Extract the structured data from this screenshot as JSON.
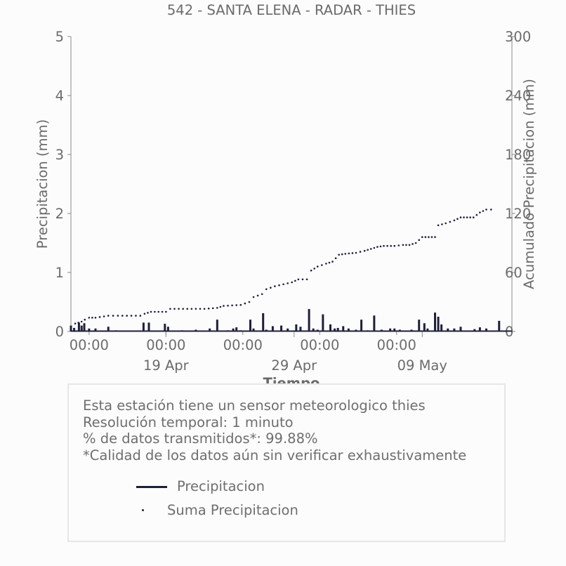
{
  "chart_data": {
    "type": "bar",
    "title": "542 - SANTA ELENA - RADAR - THIES",
    "xlabel": "Tiempo",
    "ylabel": "Precipitacion (mm)",
    "y2label": "Acumulado Precipitacion (mm)",
    "ylim": [
      0,
      5
    ],
    "y2lim": [
      0,
      300
    ],
    "yticks": [
      "0",
      "1",
      "2",
      "3",
      "4",
      "5"
    ],
    "y2ticks": [
      "0",
      "60",
      "120",
      "180",
      "240",
      "300"
    ],
    "xlim_days": [
      "2024-04-11T14:00",
      "2024-05-12T18:00"
    ],
    "xtick_hours": [
      {
        "date": "2024-04-13T00:00",
        "label": "00:00"
      },
      {
        "date": "2024-04-19T00:00",
        "label": "00:00"
      },
      {
        "date": "2024-04-25T00:00",
        "label": "00:00"
      },
      {
        "date": "2024-05-01T00:00",
        "label": "00:00"
      },
      {
        "date": "2024-05-07T00:00",
        "label": "00:00"
      }
    ],
    "xtick_dates": [
      {
        "date": "2024-04-19T00:00",
        "label": "19 Apr"
      },
      {
        "date": "2024-04-29T00:00",
        "label": "29 Apr"
      },
      {
        "date": "2024-05-09T00:00",
        "label": "09 May"
      }
    ],
    "series": [
      {
        "name": "Precipitacion",
        "color": "#1e1f3b",
        "style": "bars",
        "points": [
          [
            "2024-04-11T14:00",
            0.1
          ],
          [
            "2024-04-11T20:00",
            0.06
          ],
          [
            "2024-04-12T05:00",
            0.15
          ],
          [
            "2024-04-12T10:00",
            0.1
          ],
          [
            "2024-04-12T15:00",
            0.14
          ],
          [
            "2024-04-13T00:00",
            0.05
          ],
          [
            "2024-04-13T12:00",
            0.05
          ],
          [
            "2024-04-14T12:00",
            0.08
          ],
          [
            "2024-04-15T02:00",
            0.02
          ],
          [
            "2024-04-17T06:00",
            0.15
          ],
          [
            "2024-04-17T16:00",
            0.15
          ],
          [
            "2024-04-18T22:00",
            0.13
          ],
          [
            "2024-04-19T04:00",
            0.08
          ],
          [
            "2024-04-20T06:00",
            0.02
          ],
          [
            "2024-04-21T08:00",
            0.03
          ],
          [
            "2024-04-22T10:00",
            0.05
          ],
          [
            "2024-04-23T00:00",
            0.2
          ],
          [
            "2024-04-23T20:00",
            0.02
          ],
          [
            "2024-04-24T06:00",
            0.05
          ],
          [
            "2024-04-24T12:00",
            0.07
          ],
          [
            "2024-04-24T20:00",
            0.02
          ],
          [
            "2024-04-25T14:00",
            0.2
          ],
          [
            "2024-04-25T20:00",
            0.05
          ],
          [
            "2024-04-26T14:00",
            0.31
          ],
          [
            "2024-04-26T20:00",
            0.03
          ],
          [
            "2024-04-27T08:00",
            0.09
          ],
          [
            "2024-04-28T00:00",
            0.1
          ],
          [
            "2024-04-28T12:00",
            0.05
          ],
          [
            "2024-04-29T04:00",
            0.12
          ],
          [
            "2024-04-29T12:00",
            0.08
          ],
          [
            "2024-04-30T04:00",
            0.38
          ],
          [
            "2024-04-30T12:00",
            0.05
          ],
          [
            "2024-04-30T20:00",
            0.03
          ],
          [
            "2024-05-01T06:00",
            0.29
          ],
          [
            "2024-05-01T20:00",
            0.12
          ],
          [
            "2024-05-02T04:00",
            0.05
          ],
          [
            "2024-05-02T10:00",
            0.06
          ],
          [
            "2024-05-02T20:00",
            0.09
          ],
          [
            "2024-05-03T06:00",
            0.05
          ],
          [
            "2024-05-03T20:00",
            0.03
          ],
          [
            "2024-05-04T06:00",
            0.2
          ],
          [
            "2024-05-04T18:00",
            0.02
          ],
          [
            "2024-05-05T06:00",
            0.27
          ],
          [
            "2024-05-05T20:00",
            0.03
          ],
          [
            "2024-05-06T12:00",
            0.05
          ],
          [
            "2024-05-06T20:00",
            0.05
          ],
          [
            "2024-05-07T06:00",
            0.03
          ],
          [
            "2024-05-08T04:00",
            0.03
          ],
          [
            "2024-05-08T18:00",
            0.2
          ],
          [
            "2024-05-09T04:00",
            0.14
          ],
          [
            "2024-05-09T10:00",
            0.05
          ],
          [
            "2024-05-10T00:00",
            0.32
          ],
          [
            "2024-05-10T06:00",
            0.25
          ],
          [
            "2024-05-10T12:00",
            0.12
          ],
          [
            "2024-05-11T00:00",
            0.05
          ],
          [
            "2024-05-11T12:00",
            0.05
          ],
          [
            "2024-05-12T00:00",
            0.08
          ],
          [
            "2024-05-13T02:00",
            0.04
          ],
          [
            "2024-05-13T12:00",
            0.07
          ],
          [
            "2024-05-14T00:00",
            0.05
          ],
          [
            "2024-05-15T00:00",
            0.18
          ]
        ]
      },
      {
        "name": "Suma Precipitacion",
        "color": "#1e1f3b",
        "style": "dotted",
        "points": [
          [
            "2024-04-11T14:00",
            5
          ],
          [
            "2024-04-11T22:00",
            8
          ],
          [
            "2024-04-12T10:00",
            10
          ],
          [
            "2024-04-12T16:00",
            12
          ],
          [
            "2024-04-13T00:00",
            14
          ],
          [
            "2024-04-13T12:00",
            14
          ],
          [
            "2024-04-14T12:00",
            16
          ],
          [
            "2024-04-15T06:00",
            16
          ],
          [
            "2024-04-17T00:00",
            16
          ],
          [
            "2024-04-17T08:00",
            18
          ],
          [
            "2024-04-17T20:00",
            20
          ],
          [
            "2024-04-19T00:00",
            20
          ],
          [
            "2024-04-19T08:00",
            23
          ],
          [
            "2024-04-20T00:00",
            23
          ],
          [
            "2024-04-22T00:00",
            23
          ],
          [
            "2024-04-23T00:00",
            24
          ],
          [
            "2024-04-23T12:00",
            26
          ],
          [
            "2024-04-24T20:00",
            27
          ],
          [
            "2024-04-25T12:00",
            30
          ],
          [
            "2024-04-25T20:00",
            35
          ],
          [
            "2024-04-26T12:00",
            38
          ],
          [
            "2024-04-26T20:00",
            43
          ],
          [
            "2024-04-27T12:00",
            46
          ],
          [
            "2024-04-28T04:00",
            48
          ],
          [
            "2024-04-28T20:00",
            50
          ],
          [
            "2024-04-29T08:00",
            53
          ],
          [
            "2024-04-30T00:00",
            53
          ],
          [
            "2024-04-30T08:00",
            62
          ],
          [
            "2024-04-30T20:00",
            66
          ],
          [
            "2024-05-01T12:00",
            69
          ],
          [
            "2024-05-02T00:00",
            71
          ],
          [
            "2024-05-02T12:00",
            78
          ],
          [
            "2024-05-03T00:00",
            79
          ],
          [
            "2024-05-03T20:00",
            80
          ],
          [
            "2024-05-04T12:00",
            82
          ],
          [
            "2024-05-05T00:00",
            84
          ],
          [
            "2024-05-05T12:00",
            86
          ],
          [
            "2024-05-06T00:00",
            87
          ],
          [
            "2024-05-06T20:00",
            87
          ],
          [
            "2024-05-07T12:00",
            88
          ],
          [
            "2024-05-08T00:00",
            88
          ],
          [
            "2024-05-08T12:00",
            90
          ],
          [
            "2024-05-09T00:00",
            96
          ],
          [
            "2024-05-09T12:00",
            96
          ],
          [
            "2024-05-10T00:00",
            96
          ],
          [
            "2024-05-10T06:00",
            108
          ],
          [
            "2024-05-10T20:00",
            110
          ],
          [
            "2024-05-11T12:00",
            113
          ],
          [
            "2024-05-12T00:00",
            116
          ],
          [
            "2024-05-12T12:00",
            116
          ],
          [
            "2024-05-13T00:00",
            116
          ],
          [
            "2024-05-13T12:00",
            121
          ],
          [
            "2024-05-14T00:00",
            124
          ],
          [
            "2024-05-14T18:00",
            124
          ]
        ]
      }
    ],
    "legend_placement": "bottom-inside-box"
  },
  "info": {
    "line1": "Esta estación tiene un sensor meteorologico thies",
    "line2": "Resolución temporal: 1 minuto",
    "line3": "% de datos transmitidos*: 99.88%",
    "line4": "*Calidad de los datos aún sin verificar exhaustivamente"
  },
  "legend": {
    "item1": "Precipitacion",
    "item2": "Suma Precipitacion"
  }
}
